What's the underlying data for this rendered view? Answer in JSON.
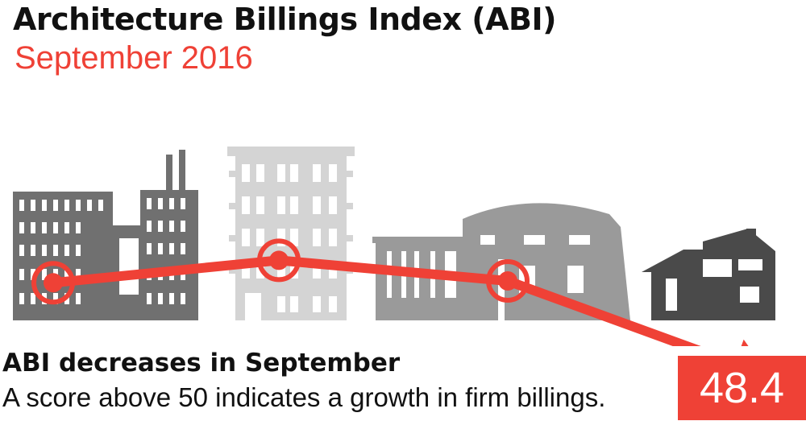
{
  "header": {
    "title": "Architecture Billings Index (ABI)",
    "subtitle": "September 2016"
  },
  "footer": {
    "headline": "ABI decreases in September",
    "description": "A score above 50 indicates a growth in firm billings.",
    "score": "48.4"
  },
  "colors": {
    "accent": "#ef4136",
    "building_dark": "#707070",
    "building_light": "#d4d4d4",
    "building_mid": "#9a9a9a",
    "house": "#4a4a4a"
  },
  "chart_data": {
    "type": "line",
    "title": "Architecture Billings Index (ABI)",
    "subtitle": "September 2016",
    "points": [
      {
        "value": 53.4
      },
      {
        "value": 54.6
      },
      {
        "value": 53.5
      },
      {
        "value": 48.4
      }
    ],
    "ylim": [
      47,
      56
    ],
    "highlighted_points": [
      0,
      1,
      2
    ],
    "trend_end": "arrow",
    "grid": false
  }
}
